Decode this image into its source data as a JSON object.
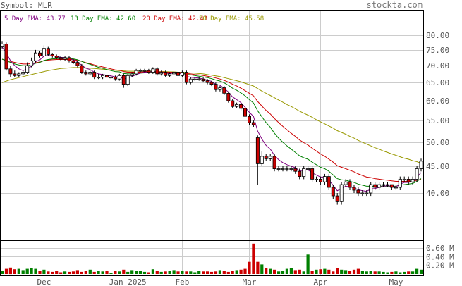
{
  "header": {
    "symbol_label": "Symbol: MLR",
    "brand": "stockta.com"
  },
  "legend": [
    {
      "label": "5 Day EMA: 43.77",
      "color": "#800080"
    },
    {
      "label": "13 Day EMA: 42.60",
      "color": "#008000"
    },
    {
      "label": "20 Day EMA: 42.43",
      "color": "#cc0000"
    },
    {
      "label": "50 Day EMA: 45.58",
      "color": "#999900"
    }
  ],
  "colors": {
    "up": "#ffffff",
    "down": "#cc0000",
    "volume_up": "#008000",
    "volume_down": "#cc0000",
    "grid": "#cccccc",
    "frame": "#000000"
  },
  "chart_data": {
    "type": "candlestick",
    "price_axis": {
      "ticks": [
        40,
        45,
        50,
        55,
        60,
        65,
        70,
        75,
        80
      ],
      "tick_labels": [
        "40.00",
        "45.00",
        "50.00",
        "55.00",
        "60.00",
        "65.00",
        "70.00",
        "75.00",
        "80.00"
      ],
      "scale": "log"
    },
    "volume_axis": {
      "ticks": [
        0.2,
        0.4,
        0.6
      ],
      "tick_labels": [
        "0.20 M",
        "0.40 M",
        "0.60 M"
      ],
      "unit": "M"
    },
    "x_labels": [
      {
        "label": "Dec",
        "index": 10
      },
      {
        "label": "Jan 2025",
        "index": 30
      },
      {
        "label": "Feb",
        "index": 43
      },
      {
        "label": "Mar",
        "index": 59
      },
      {
        "label": "Apr",
        "index": 76
      },
      {
        "label": "May",
        "index": 94
      }
    ],
    "close": [
      77.0,
      69.0,
      67.5,
      67.0,
      67.5,
      68.0,
      70.0,
      71.5,
      74.0,
      73.0,
      75.5,
      73.5,
      73.0,
      72.5,
      72.0,
      72.5,
      71.5,
      71.0,
      70.0,
      68.0,
      67.5,
      68.0,
      66.5,
      66.5,
      67.0,
      66.5,
      66.5,
      66.0,
      67.0,
      64.5,
      67.0,
      67.5,
      68.5,
      68.5,
      68.5,
      68.0,
      69.0,
      67.5,
      68.0,
      67.0,
      67.5,
      68.0,
      67.0,
      68.0,
      65.0,
      66.0,
      66.0,
      66.0,
      65.5,
      65.0,
      64.5,
      63.0,
      63.5,
      62.0,
      60.0,
      58.5,
      59.0,
      58.0,
      56.0,
      54.5,
      54.0,
      45.5,
      47.0,
      46.5,
      47.0,
      44.5,
      44.5,
      44.5,
      44.5,
      44.5,
      44.0,
      43.0,
      44.5,
      44.5,
      42.5,
      42.5,
      42.0,
      43.0,
      41.0,
      39.5,
      38.5,
      41.5,
      42.0,
      41.0,
      40.5,
      40.0,
      40.0,
      40.0,
      41.5,
      41.0,
      41.5,
      41.5,
      41.5,
      41.0,
      41.0,
      42.5,
      42.5,
      42.0,
      42.5,
      44.5,
      46.0
    ],
    "open": [
      76.0,
      77.0,
      69.0,
      67.5,
      67.0,
      67.5,
      68.0,
      70.0,
      71.5,
      74.0,
      73.0,
      75.5,
      73.5,
      73.0,
      72.5,
      72.0,
      72.5,
      71.5,
      71.0,
      70.0,
      68.0,
      67.5,
      68.0,
      66.5,
      66.5,
      67.0,
      66.5,
      66.5,
      66.0,
      67.0,
      64.5,
      67.0,
      67.5,
      68.5,
      68.5,
      68.5,
      68.0,
      69.0,
      67.5,
      68.0,
      67.0,
      67.5,
      68.0,
      67.0,
      68.0,
      65.0,
      66.0,
      66.0,
      66.0,
      65.5,
      65.0,
      64.5,
      63.0,
      63.5,
      62.0,
      60.0,
      58.5,
      59.0,
      58.0,
      56.0,
      54.5,
      51.0,
      45.5,
      47.0,
      46.5,
      47.0,
      44.5,
      44.5,
      44.5,
      44.5,
      44.5,
      44.0,
      43.0,
      44.5,
      44.5,
      42.5,
      42.5,
      42.0,
      43.0,
      41.0,
      39.5,
      38.5,
      41.5,
      42.0,
      41.0,
      40.5,
      40.0,
      40.0,
      40.0,
      41.5,
      41.0,
      41.5,
      41.5,
      41.5,
      41.0,
      41.0,
      42.5,
      42.5,
      42.0,
      42.5,
      44.5
    ],
    "high": [
      78.0,
      77.5,
      70.0,
      68.5,
      68.0,
      68.5,
      71.0,
      72.5,
      75.0,
      74.5,
      76.5,
      76.0,
      74.0,
      73.5,
      73.0,
      73.0,
      73.0,
      72.0,
      71.5,
      70.5,
      68.5,
      68.5,
      68.5,
      67.5,
      67.5,
      67.5,
      67.0,
      67.0,
      67.5,
      67.5,
      67.5,
      68.0,
      69.0,
      69.0,
      69.0,
      69.0,
      69.5,
      69.5,
      68.5,
      68.5,
      68.0,
      68.5,
      68.5,
      68.5,
      68.5,
      66.5,
      66.5,
      66.5,
      66.5,
      66.0,
      65.5,
      65.0,
      64.0,
      64.0,
      62.5,
      60.5,
      59.5,
      59.5,
      58.5,
      56.5,
      55.0,
      51.5,
      48.0,
      47.5,
      47.5,
      47.5,
      45.0,
      45.0,
      45.0,
      45.0,
      45.0,
      44.5,
      45.0,
      45.0,
      45.0,
      43.0,
      43.0,
      43.5,
      43.5,
      41.5,
      40.0,
      42.0,
      42.5,
      42.5,
      41.5,
      41.0,
      40.5,
      40.5,
      42.0,
      42.0,
      42.0,
      42.0,
      42.0,
      41.5,
      41.5,
      43.0,
      43.0,
      43.0,
      43.0,
      45.0,
      46.5
    ],
    "low": [
      75.5,
      68.5,
      66.5,
      66.5,
      66.5,
      67.0,
      67.5,
      69.5,
      71.0,
      72.5,
      72.5,
      73.0,
      72.5,
      72.0,
      71.5,
      71.5,
      71.0,
      70.5,
      69.5,
      67.5,
      67.0,
      67.0,
      66.0,
      66.0,
      66.0,
      66.0,
      66.0,
      65.5,
      65.5,
      63.5,
      64.0,
      66.5,
      67.0,
      68.0,
      68.0,
      67.5,
      67.5,
      67.0,
      67.0,
      66.5,
      66.5,
      67.0,
      66.5,
      66.5,
      64.5,
      64.5,
      65.5,
      65.5,
      65.0,
      64.5,
      64.0,
      62.5,
      62.5,
      61.5,
      59.5,
      58.0,
      58.0,
      57.5,
      55.5,
      54.0,
      53.5,
      41.5,
      45.0,
      46.0,
      46.0,
      44.0,
      44.0,
      44.0,
      44.0,
      44.0,
      43.5,
      42.5,
      42.5,
      44.0,
      42.0,
      42.0,
      41.5,
      41.5,
      40.5,
      39.0,
      38.0,
      38.0,
      41.0,
      40.5,
      40.0,
      39.5,
      39.5,
      39.5,
      39.5,
      40.5,
      40.5,
      41.0,
      41.0,
      40.5,
      40.5,
      40.5,
      42.0,
      41.5,
      41.5,
      42.0,
      44.0
    ],
    "volume": [
      0.08,
      0.12,
      0.15,
      0.11,
      0.12,
      0.09,
      0.12,
      0.13,
      0.12,
      0.07,
      0.1,
      0.06,
      0.05,
      0.07,
      0.04,
      0.06,
      0.05,
      0.06,
      0.09,
      0.05,
      0.08,
      0.1,
      0.05,
      0.07,
      0.06,
      0.08,
      0.03,
      0.07,
      0.06,
      0.1,
      0.05,
      0.09,
      0.07,
      0.07,
      0.05,
      0.04,
      0.11,
      0.08,
      0.05,
      0.06,
      0.07,
      0.09,
      0.06,
      0.07,
      0.06,
      0.06,
      0.04,
      0.08,
      0.06,
      0.06,
      0.05,
      0.06,
      0.09,
      0.08,
      0.05,
      0.07,
      0.09,
      0.1,
      0.12,
      0.28,
      0.7,
      0.28,
      0.22,
      0.14,
      0.12,
      0.1,
      0.06,
      0.08,
      0.12,
      0.14,
      0.09,
      0.1,
      0.06,
      0.45,
      0.08,
      0.1,
      0.11,
      0.12,
      0.1,
      0.06,
      0.14,
      0.1,
      0.09,
      0.07,
      0.1,
      0.12,
      0.08,
      0.06,
      0.07,
      0.06,
      0.06,
      0.05,
      0.04,
      0.05,
      0.06,
      0.04,
      0.05,
      0.06,
      0.06,
      0.12,
      0.1
    ],
    "ema5": [
      76.0,
      74.0,
      71.5,
      70.0,
      69.0,
      68.5,
      69.0,
      69.8,
      71.2,
      71.8,
      73.0,
      73.2,
      73.1,
      72.9,
      72.6,
      72.5,
      72.2,
      71.8,
      71.2,
      70.1,
      69.2,
      68.8,
      68.0,
      67.5,
      67.3,
      67.1,
      66.9,
      66.6,
      66.7,
      66.0,
      66.3,
      66.7,
      67.3,
      67.7,
      68.0,
      68.0,
      68.3,
      68.0,
      68.0,
      67.7,
      67.6,
      67.7,
      67.5,
      67.7,
      66.8,
      66.5,
      66.4,
      66.3,
      66.0,
      65.7,
      65.3,
      64.5,
      64.2,
      63.4,
      62.3,
      61.0,
      60.3,
      59.5,
      58.3,
      57.0,
      56.0,
      52.5,
      50.7,
      49.3,
      48.5,
      47.2,
      46.3,
      45.7,
      45.3,
      45.0,
      44.7,
      44.1,
      44.2,
      44.3,
      43.7,
      43.3,
      42.9,
      42.9,
      42.3,
      41.4,
      40.4,
      40.8,
      41.2,
      41.1,
      40.9,
      40.6,
      40.4,
      40.3,
      40.7,
      40.8,
      41.0,
      41.2,
      41.3,
      41.2,
      41.1,
      41.6,
      41.9,
      41.9,
      42.1,
      42.9,
      43.77
    ],
    "ema13": [
      72.0,
      71.5,
      71.0,
      70.5,
      70.2,
      70.0,
      70.0,
      70.2,
      70.7,
      71.0,
      71.6,
      71.9,
      72.1,
      72.2,
      72.2,
      72.2,
      72.2,
      72.1,
      71.8,
      71.3,
      70.8,
      70.4,
      69.9,
      69.5,
      69.2,
      68.8,
      68.5,
      68.2,
      68.1,
      67.6,
      67.5,
      67.5,
      67.6,
      67.7,
      67.8,
      67.8,
      67.9,
      67.9,
      67.9,
      67.8,
      67.8,
      67.8,
      67.7,
      67.7,
      67.4,
      67.2,
      67.0,
      66.8,
      66.6,
      66.4,
      66.1,
      65.7,
      65.4,
      64.9,
      64.2,
      63.4,
      62.8,
      62.1,
      61.3,
      60.3,
      59.4,
      57.4,
      55.9,
      54.5,
      53.4,
      52.0,
      50.9,
      50.0,
      49.2,
      48.5,
      47.8,
      47.1,
      46.7,
      46.4,
      45.8,
      45.3,
      44.8,
      44.5,
      44.0,
      43.3,
      42.6,
      42.4,
      42.3,
      42.1,
      41.9,
      41.6,
      41.4,
      41.2,
      41.2,
      41.2,
      41.2,
      41.2,
      41.2,
      41.2,
      41.2,
      41.4,
      41.5,
      41.6,
      41.7,
      42.1,
      42.6
    ],
    "ema20": [
      72.0,
      71.6,
      71.3,
      71.0,
      70.7,
      70.5,
      70.5,
      70.6,
      70.9,
      71.1,
      71.5,
      71.7,
      71.8,
      71.9,
      71.9,
      71.9,
      71.9,
      71.8,
      71.6,
      71.3,
      70.9,
      70.6,
      70.2,
      69.9,
      69.6,
      69.3,
      69.0,
      68.7,
      68.6,
      68.2,
      68.0,
      68.0,
      68.0,
      68.0,
      68.1,
      68.1,
      68.1,
      68.1,
      68.1,
      68.0,
      68.0,
      68.0,
      67.9,
      67.9,
      67.6,
      67.5,
      67.3,
      67.2,
      67.0,
      66.8,
      66.6,
      66.3,
      66.0,
      65.6,
      65.1,
      64.5,
      64.0,
      63.4,
      62.7,
      62.0,
      61.3,
      59.8,
      58.6,
      57.5,
      56.6,
      55.5,
      54.5,
      53.6,
      52.8,
      52.0,
      51.3,
      50.5,
      49.9,
      49.4,
      48.7,
      48.1,
      47.5,
      47.0,
      46.4,
      45.8,
      45.1,
      44.8,
      44.5,
      44.2,
      43.9,
      43.5,
      43.2,
      42.9,
      42.8,
      42.6,
      42.5,
      42.4,
      42.3,
      42.2,
      42.1,
      42.1,
      42.1,
      42.1,
      42.1,
      42.3,
      42.43
    ],
    "ema50": [
      65.0,
      65.4,
      65.8,
      66.1,
      66.4,
      66.7,
      67.0,
      67.3,
      67.6,
      67.9,
      68.2,
      68.5,
      68.7,
      68.9,
      69.1,
      69.2,
      69.3,
      69.4,
      69.4,
      69.4,
      69.3,
      69.2,
      69.1,
      69.0,
      68.9,
      68.8,
      68.7,
      68.6,
      68.5,
      68.4,
      68.3,
      68.3,
      68.3,
      68.3,
      68.3,
      68.3,
      68.3,
      68.2,
      68.2,
      68.2,
      68.1,
      68.1,
      68.0,
      68.0,
      67.9,
      67.8,
      67.7,
      67.6,
      67.5,
      67.3,
      67.1,
      66.9,
      66.7,
      66.4,
      66.1,
      65.8,
      65.5,
      65.2,
      64.8,
      64.4,
      64.0,
      63.3,
      62.6,
      62.0,
      61.4,
      60.8,
      60.2,
      59.6,
      59.0,
      58.5,
      57.9,
      57.3,
      56.8,
      56.3,
      55.8,
      55.2,
      54.7,
      54.2,
      53.7,
      53.2,
      52.6,
      52.2,
      51.8,
      51.3,
      50.9,
      50.4,
      50.0,
      49.6,
      49.2,
      48.8,
      48.5,
      48.1,
      47.8,
      47.5,
      47.2,
      46.9,
      46.6,
      46.4,
      46.1,
      45.9,
      45.58
    ]
  }
}
